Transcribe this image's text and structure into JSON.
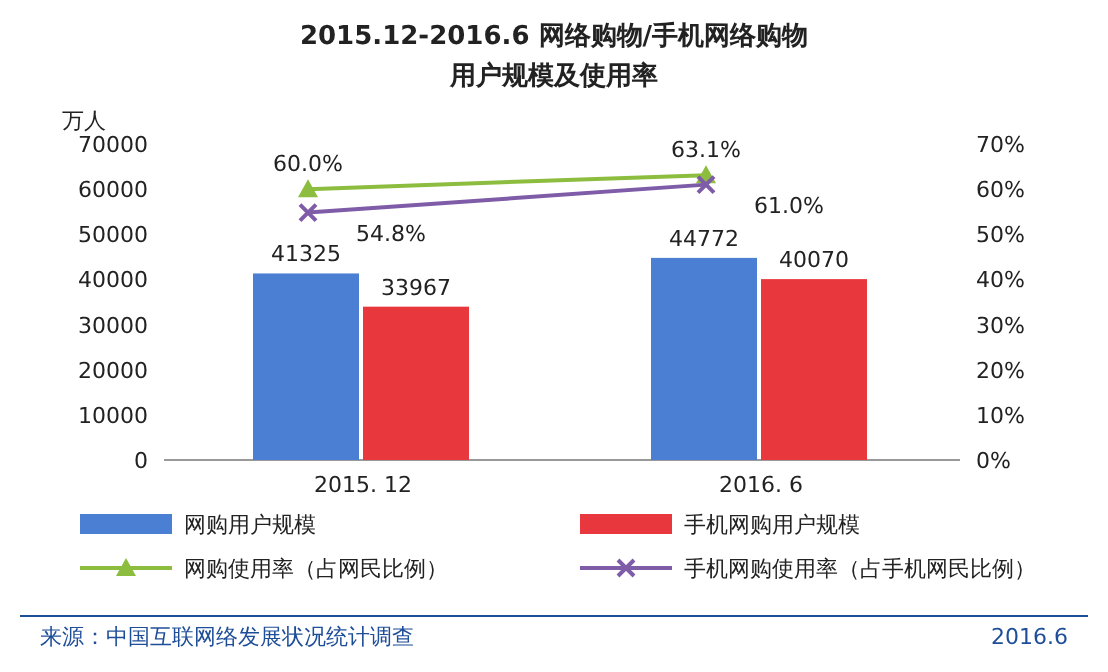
{
  "chart_data": {
    "type": "bar",
    "title": "2015.12-2016.6 网络购物/手机网络购物",
    "subtitle": "用户规模及使用率",
    "ylabel": "万人",
    "categories": [
      "2015. 12",
      "2016. 6"
    ],
    "series": [
      {
        "name": "网购用户规模",
        "color": "#4a7fd4",
        "values": [
          41325,
          44772
        ]
      },
      {
        "name": "手机网购用户规模",
        "color": "#e8383d",
        "values": [
          33967,
          40070
        ]
      },
      {
        "name": "网购使用率（占网民比例）",
        "type": "line",
        "axis": "y2",
        "color": "#8cbd3f",
        "marker": "triangle",
        "values": [
          60.0,
          63.1
        ],
        "value_labels": [
          "60.0%",
          "63.1%"
        ]
      },
      {
        "name": "手机网购使用率（占手机网民比例）",
        "type": "line",
        "axis": "y2",
        "color": "#7f5ca8",
        "marker": "cross",
        "values": [
          54.8,
          61.0
        ],
        "value_labels": [
          "54.8%",
          "61.0%"
        ]
      }
    ],
    "data_labels": true,
    "legend": "bottom",
    "line_style": "solid",
    "ylim": [
      0,
      70000
    ],
    "yticks": [
      0,
      10000,
      20000,
      30000,
      40000,
      50000,
      60000,
      70000
    ],
    "y2lim": [
      0,
      70
    ],
    "y2ticks": [
      {
        "value": 0,
        "label": "0%"
      },
      {
        "value": 10,
        "label": "10%"
      },
      {
        "value": 20,
        "label": "20%"
      },
      {
        "value": 30,
        "label": "30%"
      },
      {
        "value": 40,
        "label": "40%"
      },
      {
        "value": 50,
        "label": "50%"
      },
      {
        "value": 60,
        "label": "60%"
      },
      {
        "value": 70,
        "label": "70%"
      }
    ],
    "annotations": [
      "来源：中国互联网络发展状况统计调查",
      "2016.6"
    ]
  }
}
